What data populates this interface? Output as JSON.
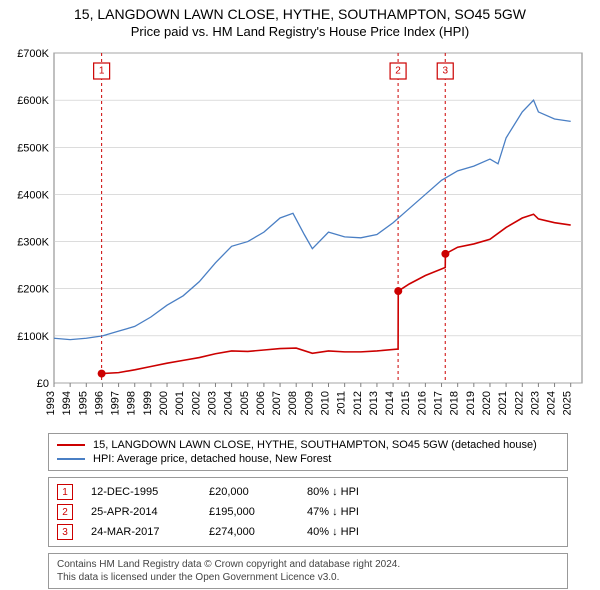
{
  "title": {
    "main": "15, LANGDOWN LAWN CLOSE, HYTHE, SOUTHAMPTON, SO45 5GW",
    "sub": "Price paid vs. HM Land Registry's House Price Index (HPI)",
    "fontsize_main": 14,
    "fontsize_sub": 13,
    "color": "#000000"
  },
  "chart": {
    "type": "line",
    "background": "#ffffff",
    "plot_border_color": "#808080",
    "grid_color": "#c8c8c8",
    "axis_label_fontsize": 11,
    "x": {
      "min": 1993,
      "max": 2025.7,
      "ticks": [
        1993,
        1994,
        1995,
        1996,
        1997,
        1998,
        1999,
        2000,
        2001,
        2002,
        2003,
        2004,
        2005,
        2006,
        2007,
        2008,
        2009,
        2010,
        2011,
        2012,
        2013,
        2014,
        2015,
        2016,
        2017,
        2018,
        2019,
        2020,
        2021,
        2022,
        2023,
        2024,
        2025
      ],
      "tick_rotation": -90
    },
    "y": {
      "min": 0,
      "max": 700000,
      "ticks": [
        0,
        100000,
        200000,
        300000,
        400000,
        500000,
        600000,
        700000
      ],
      "tick_labels": [
        "£0",
        "£100K",
        "£200K",
        "£300K",
        "£400K",
        "£500K",
        "£600K",
        "£700K"
      ]
    },
    "markers": [
      {
        "n": "1",
        "x": 1995.95,
        "color": "#cc0000"
      },
      {
        "n": "2",
        "x": 2014.31,
        "color": "#cc0000"
      },
      {
        "n": "3",
        "x": 2017.23,
        "color": "#cc0000"
      }
    ],
    "series": [
      {
        "name": "hpi",
        "color": "#4a7fc4",
        "width": 1.3,
        "points": [
          [
            1993,
            95000
          ],
          [
            1994,
            92000
          ],
          [
            1995,
            95000
          ],
          [
            1996,
            100000
          ],
          [
            1997,
            110000
          ],
          [
            1998,
            120000
          ],
          [
            1999,
            140000
          ],
          [
            2000,
            165000
          ],
          [
            2001,
            185000
          ],
          [
            2002,
            215000
          ],
          [
            2003,
            255000
          ],
          [
            2004,
            290000
          ],
          [
            2005,
            300000
          ],
          [
            2006,
            320000
          ],
          [
            2007,
            350000
          ],
          [
            2007.8,
            360000
          ],
          [
            2008.5,
            315000
          ],
          [
            2009,
            285000
          ],
          [
            2010,
            320000
          ],
          [
            2011,
            310000
          ],
          [
            2012,
            308000
          ],
          [
            2013,
            315000
          ],
          [
            2014,
            340000
          ],
          [
            2015,
            370000
          ],
          [
            2016,
            400000
          ],
          [
            2017,
            430000
          ],
          [
            2018,
            450000
          ],
          [
            2019,
            460000
          ],
          [
            2020,
            475000
          ],
          [
            2020.5,
            465000
          ],
          [
            2021,
            520000
          ],
          [
            2022,
            575000
          ],
          [
            2022.7,
            600000
          ],
          [
            2023,
            575000
          ],
          [
            2024,
            560000
          ],
          [
            2025,
            555000
          ]
        ]
      },
      {
        "name": "price_paid",
        "color": "#cc0000",
        "width": 1.6,
        "points": [
          [
            1995.95,
            20000
          ],
          [
            1997,
            22000
          ],
          [
            1998,
            28000
          ],
          [
            1999,
            35000
          ],
          [
            2000,
            42000
          ],
          [
            2001,
            48000
          ],
          [
            2002,
            54000
          ],
          [
            2003,
            62000
          ],
          [
            2004,
            68000
          ],
          [
            2005,
            67000
          ],
          [
            2006,
            70000
          ],
          [
            2007,
            73000
          ],
          [
            2008,
            74000
          ],
          [
            2009,
            63000
          ],
          [
            2010,
            68000
          ],
          [
            2011,
            66000
          ],
          [
            2012,
            66000
          ],
          [
            2013,
            68000
          ],
          [
            2014.31,
            72000
          ],
          [
            2014.32,
            195000
          ],
          [
            2015,
            210000
          ],
          [
            2016,
            228000
          ],
          [
            2017.23,
            245000
          ],
          [
            2017.24,
            274000
          ],
          [
            2018,
            288000
          ],
          [
            2019,
            295000
          ],
          [
            2020,
            305000
          ],
          [
            2021,
            330000
          ],
          [
            2022,
            350000
          ],
          [
            2022.7,
            358000
          ],
          [
            2023,
            348000
          ],
          [
            2024,
            340000
          ],
          [
            2025,
            335000
          ]
        ],
        "dots": [
          {
            "x": 1995.95,
            "y": 20000
          },
          {
            "x": 2014.32,
            "y": 195000
          },
          {
            "x": 2017.24,
            "y": 274000
          }
        ]
      }
    ]
  },
  "legend": {
    "border_color": "#999999",
    "fontsize": 11,
    "items": [
      {
        "color": "#cc0000",
        "label": "15, LANGDOWN LAWN CLOSE, HYTHE, SOUTHAMPTON, SO45 5GW (detached house)"
      },
      {
        "color": "#4a7fc4",
        "label": "HPI: Average price, detached house, New Forest"
      }
    ]
  },
  "transactions": {
    "border_color": "#999999",
    "fontsize": 11,
    "rows": [
      {
        "n": "1",
        "color": "#cc0000",
        "date": "12-DEC-1995",
        "price": "£20,000",
        "delta": "80% ↓ HPI"
      },
      {
        "n": "2",
        "color": "#cc0000",
        "date": "25-APR-2014",
        "price": "£195,000",
        "delta": "47% ↓ HPI"
      },
      {
        "n": "3",
        "color": "#cc0000",
        "date": "24-MAR-2017",
        "price": "£274,000",
        "delta": "40% ↓ HPI"
      }
    ]
  },
  "footer": {
    "line1": "Contains HM Land Registry data © Crown copyright and database right 2024.",
    "line2": "This data is licensed under the Open Government Licence v3.0.",
    "fontsize": 10,
    "color": "#444444"
  }
}
